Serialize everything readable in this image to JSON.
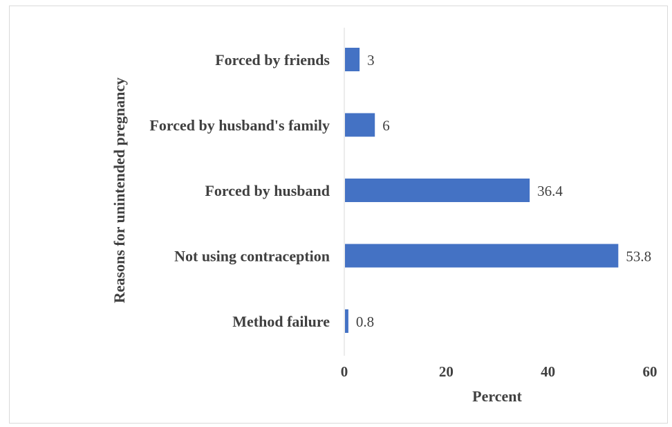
{
  "chart_data": {
    "type": "bar",
    "orientation": "horizontal",
    "categories": [
      "Method failure",
      "Not using contraception",
      "Forced by husband",
      "Forced by husband's family",
      "Forced by friends"
    ],
    "values": [
      0.8,
      53.8,
      36.4,
      6,
      3
    ],
    "data_labels": [
      "0.8",
      "53.8",
      "36.4",
      "6",
      "3"
    ],
    "xlabel": "Percent",
    "ylabel": "Reasons for unintended pregnancy",
    "xlim": [
      0,
      60
    ],
    "xticks": [
      0,
      20,
      40,
      60
    ],
    "xtick_labels": [
      "0",
      "20",
      "40",
      "60"
    ],
    "grid": false,
    "legend": "none",
    "bar_color": "#4472c4"
  }
}
